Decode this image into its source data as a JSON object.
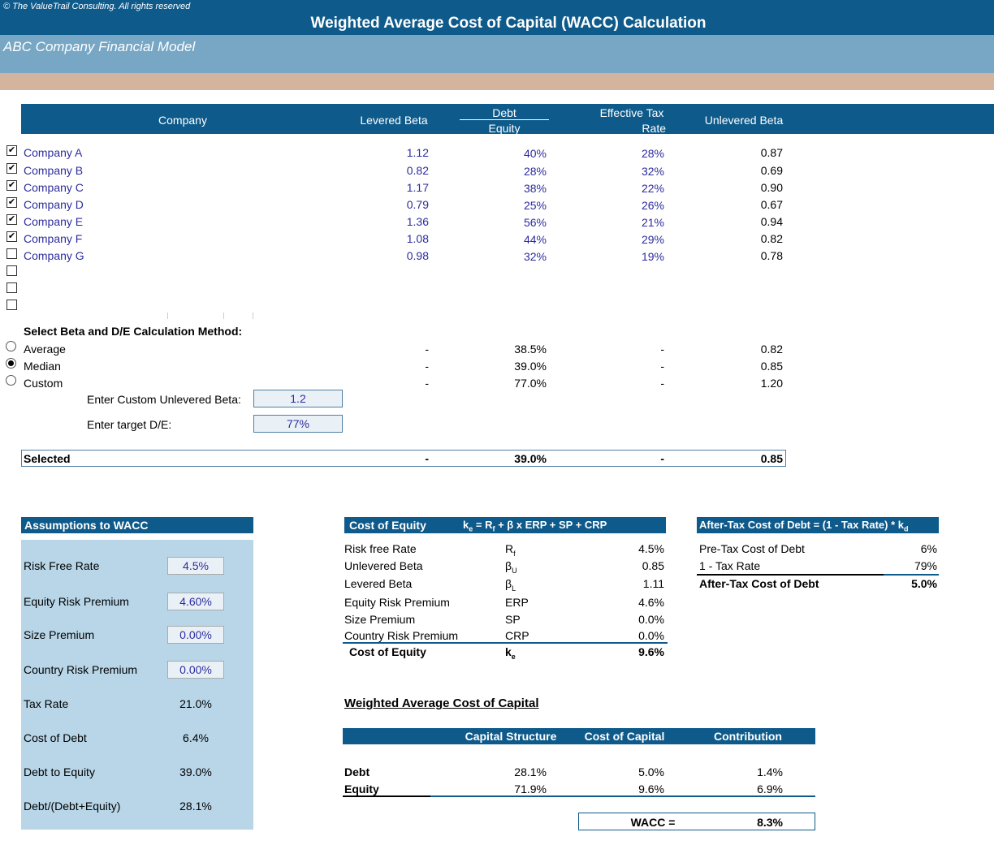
{
  "header": {
    "copyright": "© The ValueTrail Consulting. All rights reserved",
    "title": "Weighted Average Cost of Capital (WACC) Calculation",
    "subtitle": "ABC Company Financial Model"
  },
  "comps_table": {
    "headers": {
      "company": "Company",
      "levered_beta": "Levered Beta",
      "debt": "Debt",
      "equity": "Equity",
      "tax_line1": "Effective Tax",
      "tax_line2": "Rate",
      "unlevered_beta": "Unlevered Beta"
    },
    "rows": [
      {
        "checked": true,
        "name": "Company A",
        "beta": "1.12",
        "de": "40%",
        "tax": "28%",
        "ubeta": "0.87"
      },
      {
        "checked": true,
        "name": "Company B",
        "beta": "0.82",
        "de": "28%",
        "tax": "32%",
        "ubeta": "0.69"
      },
      {
        "checked": true,
        "name": "Company C",
        "beta": "1.17",
        "de": "38%",
        "tax": "22%",
        "ubeta": "0.90"
      },
      {
        "checked": true,
        "name": "Company D",
        "beta": "0.79",
        "de": "25%",
        "tax": "26%",
        "ubeta": "0.67"
      },
      {
        "checked": true,
        "name": "Company E",
        "beta": "1.36",
        "de": "56%",
        "tax": "21%",
        "ubeta": "0.94"
      },
      {
        "checked": true,
        "name": "Company F",
        "beta": "1.08",
        "de": "44%",
        "tax": "29%",
        "ubeta": "0.82"
      },
      {
        "checked": false,
        "name": "Company G",
        "beta": "0.98",
        "de": "32%",
        "tax": "19%",
        "ubeta": "0.78"
      },
      {
        "checked": false,
        "name": "",
        "beta": "",
        "de": "",
        "tax": "",
        "ubeta": ""
      },
      {
        "checked": false,
        "name": "",
        "beta": "",
        "de": "",
        "tax": "",
        "ubeta": ""
      },
      {
        "checked": false,
        "name": "",
        "beta": "",
        "de": "",
        "tax": "",
        "ubeta": ""
      }
    ]
  },
  "method": {
    "title": "Select Beta and D/E Calculation Method:",
    "options": [
      {
        "label": "Average",
        "selected": false,
        "beta": "-",
        "de": "38.5%",
        "tax": "-",
        "ubeta": "0.82"
      },
      {
        "label": "Median",
        "selected": true,
        "beta": "-",
        "de": "39.0%",
        "tax": "-",
        "ubeta": "0.85"
      },
      {
        "label": "Custom",
        "selected": false,
        "beta": "-",
        "de": "77.0%",
        "tax": "-",
        "ubeta": "1.20"
      }
    ],
    "custom_beta_label": "Enter Custom Unlevered Beta:",
    "custom_beta_value": "1.2",
    "target_de_label": "Enter target D/E:",
    "target_de_value": "77%",
    "selected_label": "Selected",
    "selected_beta": "-",
    "selected_de": "39.0%",
    "selected_tax": "-",
    "selected_ubeta": "0.85"
  },
  "assumptions": {
    "title": "Assumptions to WACC",
    "items": [
      {
        "label": "Risk Free Rate",
        "value": "4.5%",
        "input": true
      },
      {
        "label": "Equity Risk Premium",
        "value": "4.60%",
        "input": true
      },
      {
        "label": "Size Premium",
        "value": "0.00%",
        "input": true
      },
      {
        "label": "Country Risk Premium",
        "value": "0.00%",
        "input": true
      },
      {
        "label": "Tax Rate",
        "value": "21.0%",
        "input": false
      },
      {
        "label": "Cost of Debt",
        "value": "6.4%",
        "input": false
      },
      {
        "label": "Debt to Equity",
        "value": "39.0%",
        "input": false
      },
      {
        "label": "Debt/(Debt+Equity)",
        "value": "28.1%",
        "input": false
      }
    ]
  },
  "cost_of_equity": {
    "title": "Cost of Equity",
    "formula": "kₑ = R_f + β x ERP + SP + CRP",
    "rows": [
      {
        "label": "Risk free Rate",
        "symbol": "R_f",
        "value": "4.5%"
      },
      {
        "label": "Unlevered Beta",
        "symbol": "β_U",
        "value": "0.85"
      },
      {
        "label": "Levered Beta",
        "symbol": "β_L",
        "value": "1.11"
      },
      {
        "label": "Equity Risk Premium",
        "symbol": "ERP",
        "value": "4.6%"
      },
      {
        "label": "Size Premium",
        "symbol": "SP",
        "value": "0.0%"
      },
      {
        "label": "Country Risk Premium",
        "symbol": "CRP",
        "value": "0.0%"
      }
    ],
    "total_label": "Cost of Equity",
    "total_symbol": "kₑ",
    "total_value": "9.6%"
  },
  "cost_of_debt": {
    "title": "After-Tax Cost of Debt = (1 - Tax Rate) * k_d",
    "rows": [
      {
        "label": "Pre-Tax Cost of Debt",
        "value": "6%"
      },
      {
        "label": "1 - Tax Rate",
        "value": "79%"
      }
    ],
    "total_label": "After-Tax Cost of Debt",
    "total_value": "5.0%"
  },
  "wacc": {
    "title": "Weighted Average Cost of Capital",
    "headers": {
      "structure": "Capital Structure",
      "cost": "Cost of Capital",
      "contribution": "Contribution"
    },
    "rows": [
      {
        "label": "Debt",
        "structure": "28.1%",
        "cost": "5.0%",
        "contribution": "1.4%"
      },
      {
        "label": "Equity",
        "structure": "71.9%",
        "cost": "9.6%",
        "contribution": "6.9%"
      }
    ],
    "result_label": "WACC =",
    "result_value": "8.3%"
  }
}
